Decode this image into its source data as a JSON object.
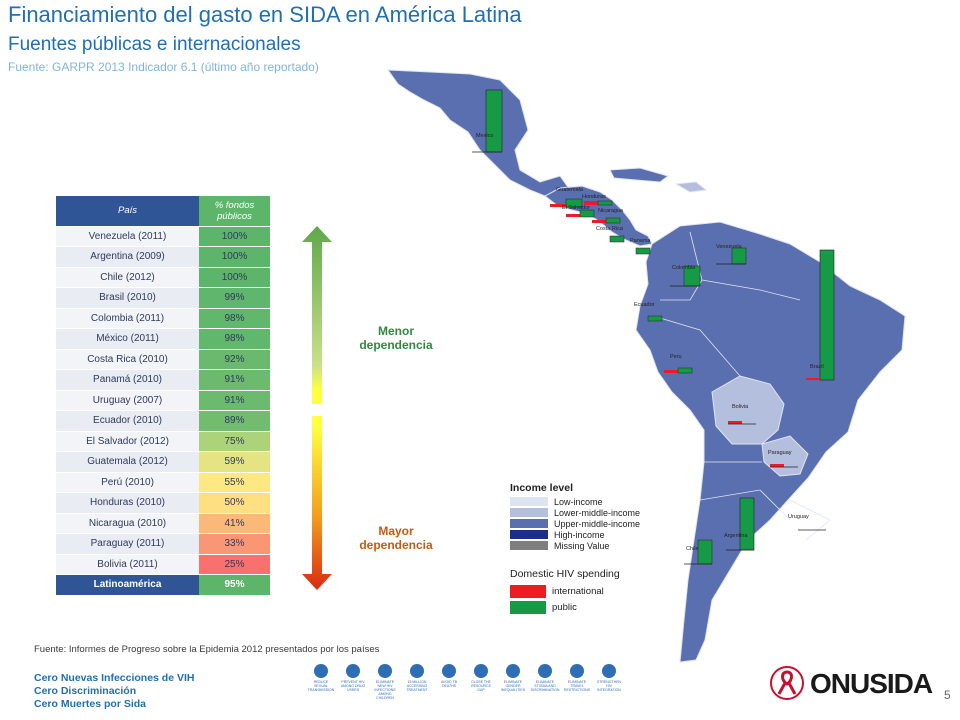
{
  "header": {
    "title": "Financiamiento del gasto en SIDA en América Latina",
    "subtitle": "Fuentes públicas e internacionales",
    "source": "Fuente: GARPR 2013 Indicador 6.1  (último año reportado)"
  },
  "table": {
    "col_country": "País",
    "col_pct": "% fondos públicos",
    "rows": [
      {
        "country": "Venezuela (2011)",
        "pct": "100%",
        "color": "#5cb56b"
      },
      {
        "country": "Argentina (2009)",
        "pct": "100%",
        "color": "#5cb56b"
      },
      {
        "country": "Chile (2012)",
        "pct": "100%",
        "color": "#5cb56b"
      },
      {
        "country": "Brasil (2010)",
        "pct": "99%",
        "color": "#5fb66c"
      },
      {
        "country": "Colombia (2011)",
        "pct": "98%",
        "color": "#61b76c"
      },
      {
        "country": "México (2011)",
        "pct": "98%",
        "color": "#61b76c"
      },
      {
        "country": "Costa Rica (2010)",
        "pct": "92%",
        "color": "#6ab96e"
      },
      {
        "country": "Panamá (2010)",
        "pct": "91%",
        "color": "#6cba6e"
      },
      {
        "country": "Uruguay (2007)",
        "pct": "91%",
        "color": "#6cba6e"
      },
      {
        "country": "Ecuador (2010)",
        "pct": "89%",
        "color": "#72bc6f"
      },
      {
        "country": "El Salvador (2012)",
        "pct": "75%",
        "color": "#acd27a"
      },
      {
        "country": "Guatemala (2012)",
        "pct": "59%",
        "color": "#e5e483"
      },
      {
        "country": "Perú (2010)",
        "pct": "55%",
        "color": "#fde883"
      },
      {
        "country": "Honduras (2010)",
        "pct": "50%",
        "color": "#fedf81"
      },
      {
        "country": "Nicaragua (2010)",
        "pct": "41%",
        "color": "#fbb979"
      },
      {
        "country": "Paraguay (2011)",
        "pct": "33%",
        "color": "#f99775"
      },
      {
        "country": "Bolivia (2011)",
        "pct": "25%",
        "color": "#f8716e"
      }
    ],
    "total": {
      "country": "Latinoamérica",
      "pct": "95%"
    }
  },
  "arrow": {
    "top_label": "Menor dependencia",
    "bottom_label": "Mayor dependencia"
  },
  "legend": {
    "title": "Income level",
    "items": [
      {
        "label": "Low-income",
        "color": "#dde3f0"
      },
      {
        "label": "Lower-middle-income",
        "color": "#b4bfde"
      },
      {
        "label": "Upper-middle-income",
        "color": "#5a6fb0"
      },
      {
        "label": "High-income",
        "color": "#1c2f86"
      },
      {
        "label": "Missing Value",
        "color": "#7f7f7f"
      }
    ]
  },
  "spending": {
    "title": "Domestic HIV spending",
    "items": [
      {
        "label": "international",
        "color": "#ed1c24"
      },
      {
        "label": "public",
        "color": "#179a45"
      }
    ]
  },
  "map_labels": {
    "mexico": "Mexico",
    "guatemala": "Guatemala",
    "honduras": "Honduras",
    "salvador": "El Salvador",
    "nicaragua": "Nicaragua",
    "costarica": "Costa Rica",
    "panama": "Panama",
    "venezuela": "Venezuela",
    "colombia": "Colombia",
    "ecuador": "Ecuador",
    "peru": "Peru",
    "brazil": "Brazil",
    "bolivia": "Bolivia",
    "paraguay": "Paraguay",
    "chile": "Chile",
    "argentina": "Argentina",
    "uruguay": "Uruguay"
  },
  "footer": {
    "source": "Fuente: Informes de Progreso sobre la Epidemia 2012 presentados por los países",
    "tag1": "Cero Nuevas Infecciones de VIH",
    "tag2": "Cero Discriminación",
    "tag3": "Cero Muertes por  Sida",
    "icons": [
      {
        "name": "reduce-sexual-transmission-icon",
        "label": "REDUCE SEXUAL TRANSMISSION"
      },
      {
        "name": "prevent-hiv-drug-users-icon",
        "label": "PREVENT HIV AMONG DRUG USERS"
      },
      {
        "name": "eliminate-hiv-children-icon",
        "label": "ELIMINATE NEW HIV INFECTIONS AMONG CHILDREN"
      },
      {
        "name": "treatment-icon",
        "label": "15 MILLION ACCESSING TREATMENT"
      },
      {
        "name": "tb-deaths-icon",
        "label": "AVOID TB DEATHS"
      },
      {
        "name": "resource-gap-icon",
        "label": "CLOSE THE RESOURCE GAP"
      },
      {
        "name": "gender-inequalities-icon",
        "label": "ELIMINATE GENDER INEQUALITIES"
      },
      {
        "name": "stigma-icon",
        "label": "ELIMINATE STIGMA AND DISCRIMINATION"
      },
      {
        "name": "travel-restrictions-icon",
        "label": "ELIMINATE TRAVEL RESTRICTIONS"
      },
      {
        "name": "hiv-integration-icon",
        "label": "STRENGTHEN HIV INTEGRATION"
      }
    ],
    "logo": "ONUSIDA",
    "page": "5"
  }
}
